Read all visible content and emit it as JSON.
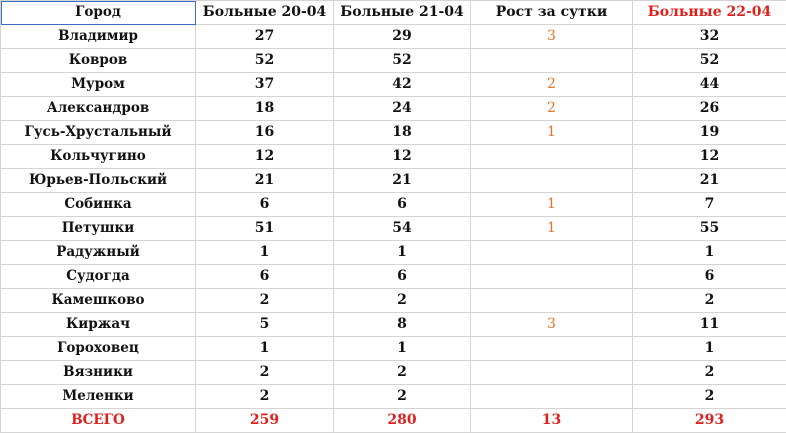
{
  "table": {
    "header": [
      "Город",
      "Больные 20-04",
      "Больные 21-04",
      "Рост за сутки",
      "Больные 22-04"
    ],
    "rows": [
      [
        "Владимир",
        27,
        29,
        3,
        32
      ],
      [
        "Ковров",
        52,
        52,
        null,
        52
      ],
      [
        "Муром",
        37,
        42,
        2,
        44
      ],
      [
        "Александров",
        18,
        24,
        2,
        26
      ],
      [
        "Гусь-Хрустальный",
        16,
        18,
        1,
        19
      ],
      [
        "Кольчугино",
        12,
        12,
        null,
        12
      ],
      [
        "Юрьев-Польский",
        21,
        21,
        null,
        21
      ],
      [
        "Собинка",
        6,
        6,
        1,
        7
      ],
      [
        "Петушки",
        51,
        54,
        1,
        55
      ],
      [
        "Радужный",
        1,
        1,
        null,
        1
      ],
      [
        "Судогда",
        6,
        6,
        null,
        6
      ],
      [
        "Камешково",
        2,
        2,
        null,
        2
      ],
      [
        "Киржач",
        5,
        8,
        3,
        11
      ],
      [
        "Гороховец",
        1,
        1,
        null,
        1
      ],
      [
        "Вязники",
        2,
        2,
        null,
        2
      ],
      [
        "Меленки",
        2,
        2,
        null,
        2
      ]
    ],
    "total": [
      "ВСЕГО",
      259,
      280,
      13,
      293
    ]
  }
}
